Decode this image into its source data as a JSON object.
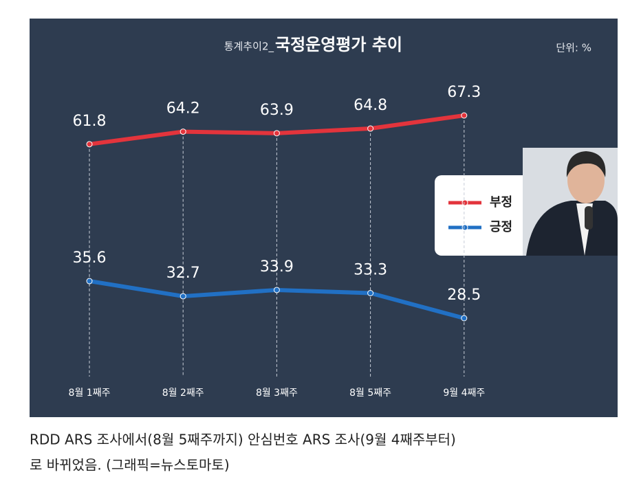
{
  "chart_data": {
    "type": "line",
    "kicker": "통계추이2_",
    "title": "국정운영평가 추이",
    "unit_note": "단위: %",
    "categories": [
      "8월 1째주",
      "8월 2째주",
      "8월 3째주",
      "8월 5째주",
      "9월 4째주"
    ],
    "series": [
      {
        "name": "부정",
        "color": "#e3343c",
        "values": [
          61.8,
          64.2,
          63.9,
          64.8,
          67.3
        ]
      },
      {
        "name": "긍정",
        "color": "#2170c4",
        "values": [
          35.6,
          32.7,
          33.9,
          33.3,
          28.5
        ]
      }
    ]
  },
  "caption": [
    "RDD ARS 조사에서(8월 5째주까지) 안심번호 ARS 조사(9월 4째주부터)",
    "로 바뀌었음. (그래픽=뉴스토마토)"
  ]
}
